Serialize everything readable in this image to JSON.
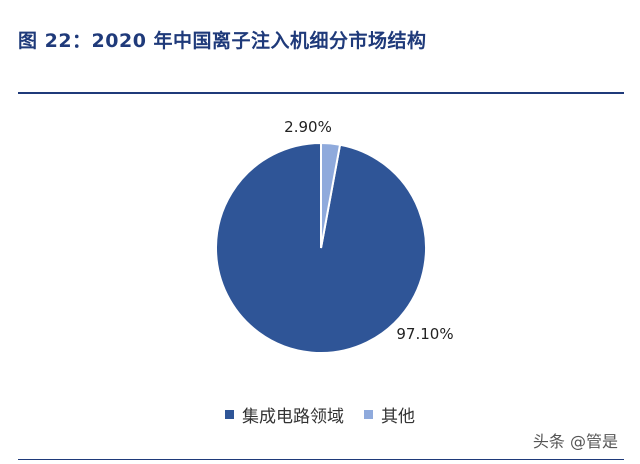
{
  "figure": {
    "title": "图 22：2020 年中国离子注入机细分市场结构"
  },
  "watermark": "头条 @管是",
  "colors": {
    "title": "#1f3a7a",
    "series_main": "#2f5597",
    "series_other": "#8faadc"
  },
  "chart_data": {
    "type": "pie",
    "title": "",
    "slices": [
      {
        "name": "集成电路领域",
        "value": 97.1,
        "label": "97.10%",
        "color": "#2f5597"
      },
      {
        "name": "其他",
        "value": 2.9,
        "label": "2.90%",
        "color": "#8faadc"
      }
    ],
    "legend": {
      "placement": "bottom",
      "entries": [
        "集成电路领域",
        "其他"
      ]
    }
  }
}
